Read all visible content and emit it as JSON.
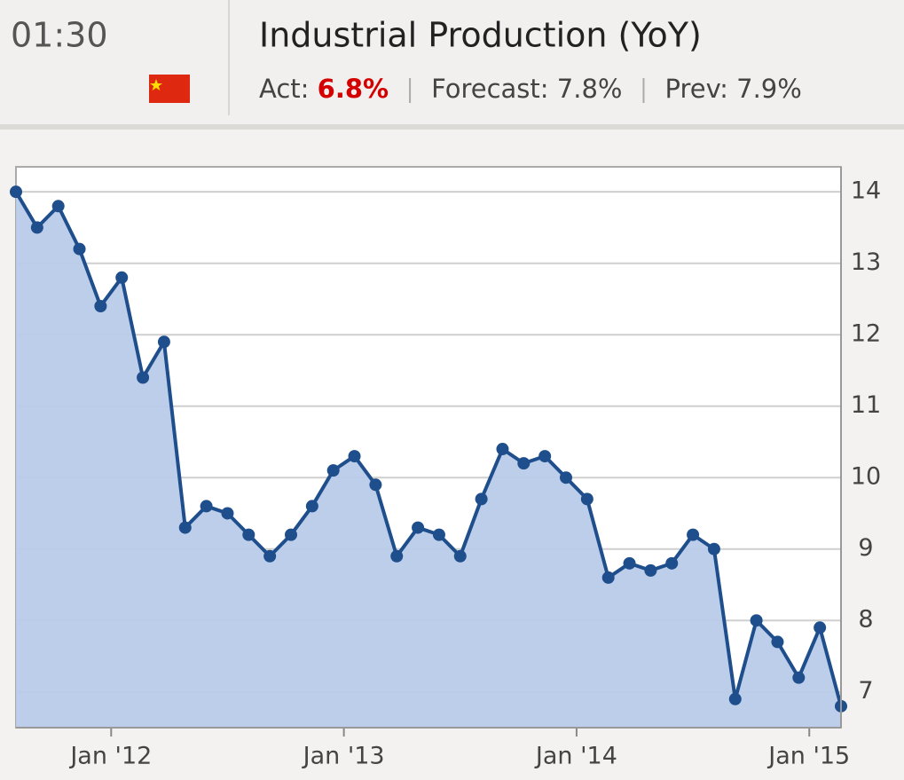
{
  "header": {
    "time": "01:30",
    "title": "Industrial Production (YoY)",
    "actual": {
      "label": "Act:",
      "value": "6.8%"
    },
    "forecast": {
      "label": "Forecast:",
      "value": "7.8%"
    },
    "previous": {
      "label": "Prev:",
      "value": "7.9%"
    }
  },
  "chart_data": {
    "type": "area",
    "x": [
      0,
      1,
      2,
      3,
      4,
      5,
      6,
      7,
      8,
      9,
      10,
      11,
      12,
      13,
      14,
      15,
      16,
      17,
      18,
      19,
      20,
      21,
      22,
      23,
      24,
      25,
      26,
      27,
      28,
      29,
      30,
      31,
      32,
      33,
      34,
      35,
      36,
      37,
      38,
      39
    ],
    "series": [
      {
        "name": "Industrial Production (YoY)",
        "color": "#1f4e8c",
        "fill": "#b9cbe9",
        "values": [
          14.0,
          13.5,
          13.8,
          13.2,
          12.4,
          12.8,
          11.4,
          11.9,
          9.3,
          9.6,
          9.5,
          9.2,
          8.9,
          9.2,
          9.6,
          10.1,
          10.3,
          9.9,
          8.9,
          9.3,
          9.2,
          8.9,
          9.7,
          10.4,
          10.2,
          10.3,
          10.0,
          9.7,
          8.6,
          8.8,
          8.7,
          8.8,
          9.2,
          9.0,
          6.9,
          8.0,
          7.7,
          7.2,
          7.9,
          6.8
        ]
      }
    ],
    "xlim": [
      0,
      39
    ],
    "xticks": [
      {
        "value": 4.5,
        "label": "Jan '12"
      },
      {
        "value": 15.5,
        "label": "Jan '13"
      },
      {
        "value": 26.5,
        "label": "Jan '14"
      },
      {
        "value": 37.5,
        "label": "Jan '15"
      }
    ],
    "ylim": [
      6.5,
      14.35
    ],
    "yticks": [
      7,
      8,
      9,
      10,
      11,
      12,
      13,
      14
    ],
    "grid": true
  }
}
